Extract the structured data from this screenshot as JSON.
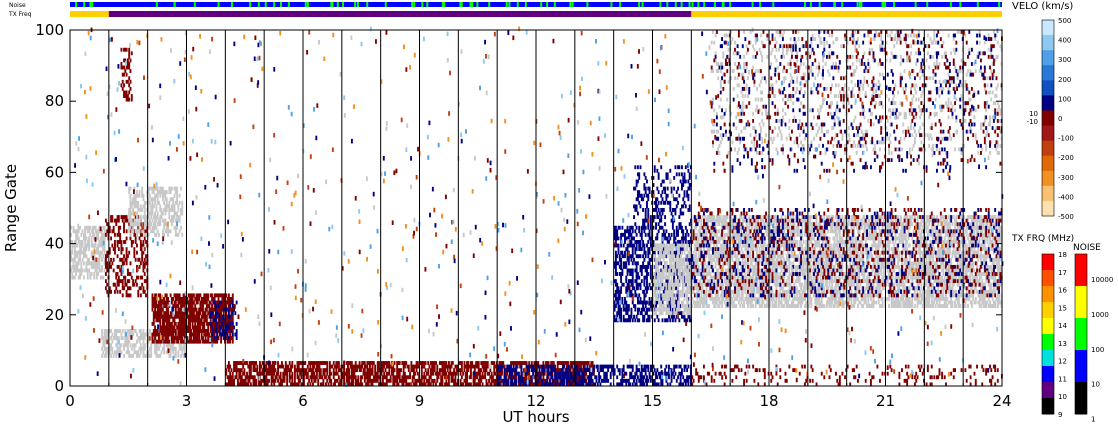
{
  "header": {
    "noise_label": "Noise",
    "txfreq_label": "TX Freq"
  },
  "colorbars": {
    "velo": {
      "title": "VELO (km/s)",
      "ticks": [
        "500",
        "400",
        "300",
        "200",
        "100",
        "0",
        "-100",
        "-200",
        "-300",
        "-400",
        "-500"
      ],
      "small_labels": [
        "10",
        "-10"
      ],
      "colors": [
        "#c8e8ff",
        "#8cc8f0",
        "#50a0e8",
        "#2878d8",
        "#1050c0",
        "#000080",
        "#800000",
        "#a01818",
        "#c04010",
        "#e06808",
        "#f09020",
        "#f8c070",
        "#fde0b0"
      ]
    },
    "txfrq": {
      "title": "TX FRQ (MHz)",
      "ticks": [
        "18",
        "17",
        "16",
        "15",
        "14",
        "13",
        "12",
        "11",
        "10",
        "9"
      ],
      "colors": [
        "#ff0000",
        "#ff5000",
        "#ff9000",
        "#ffd000",
        "#ffff00",
        "#00ff00",
        "#00e0e0",
        "#0000ff",
        "#600080",
        "#000000"
      ]
    },
    "noise": {
      "title": "NOISE",
      "ticks": [
        "10000",
        "1000",
        "100",
        "10",
        "1"
      ],
      "colors": [
        "#ff0000",
        "#ffff00",
        "#00ff00",
        "#0000ff",
        "#000000"
      ]
    }
  },
  "chart_data": {
    "type": "heatmap",
    "title": "",
    "xlabel": "UT hours",
    "ylabel": "Range Gate",
    "xlim": [
      0,
      24
    ],
    "ylim": [
      0,
      100
    ],
    "xticks": [
      "0",
      "3",
      "6",
      "9",
      "12",
      "15",
      "18",
      "21",
      "24"
    ],
    "yticks": [
      "0",
      "20",
      "40",
      "60",
      "80",
      "100"
    ],
    "ground_scatter_color": "#c8c8c8",
    "velocity_colors": {
      "negative": "#800000",
      "positive": "#000080"
    },
    "vertical_lines_hours": [
      1,
      2,
      3,
      4,
      5,
      6,
      7,
      8,
      9,
      10,
      11,
      12,
      13,
      14,
      15,
      16,
      17,
      18,
      19,
      20,
      21,
      22,
      23
    ],
    "tx_freq_segments": [
      {
        "from": 0,
        "to": 1,
        "color": "#ffd000"
      },
      {
        "from": 1,
        "to": 16,
        "color": "#600080"
      },
      {
        "from": 16,
        "to": 24,
        "color": "#ffd000"
      }
    ],
    "regions": [
      {
        "kind": "ground",
        "x": [
          0.0,
          0.9
        ],
        "y": [
          30,
          45
        ],
        "density": 0.6
      },
      {
        "kind": "neg",
        "x": [
          0.9,
          2.0
        ],
        "y": [
          25,
          48
        ],
        "density": 0.35
      },
      {
        "kind": "ground",
        "x": [
          1.5,
          2.9
        ],
        "y": [
          42,
          56
        ],
        "density": 0.5
      },
      {
        "kind": "neg",
        "x": [
          1.3,
          1.6
        ],
        "y": [
          80,
          95
        ],
        "density": 0.4
      },
      {
        "kind": "ground",
        "x": [
          0.8,
          3.0
        ],
        "y": [
          8,
          16
        ],
        "density": 0.6
      },
      {
        "kind": "neg",
        "x": [
          2.1,
          4.2
        ],
        "y": [
          12,
          26
        ],
        "density": 0.8
      },
      {
        "kind": "pos",
        "x": [
          3.6,
          4.3
        ],
        "y": [
          13,
          24
        ],
        "density": 0.3
      },
      {
        "kind": "neg",
        "x": [
          4.0,
          13.5
        ],
        "y": [
          0,
          7
        ],
        "density": 0.65
      },
      {
        "kind": "pos",
        "x": [
          11.0,
          16.0
        ],
        "y": [
          0,
          6
        ],
        "density": 0.5
      },
      {
        "kind": "pos",
        "x": [
          14.0,
          16.0
        ],
        "y": [
          18,
          45
        ],
        "density": 0.45
      },
      {
        "kind": "pos",
        "x": [
          14.5,
          16.0
        ],
        "y": [
          45,
          62
        ],
        "density": 0.25
      },
      {
        "kind": "ground",
        "x": [
          15.0,
          16.0
        ],
        "y": [
          20,
          40
        ],
        "density": 0.6
      },
      {
        "kind": "ground",
        "x": [
          16.0,
          24.0
        ],
        "y": [
          22,
          48
        ],
        "density": 0.65
      },
      {
        "kind": "neg",
        "x": [
          16.0,
          24.0
        ],
        "y": [
          25,
          50
        ],
        "density": 0.12
      },
      {
        "kind": "pos",
        "x": [
          16.0,
          24.0
        ],
        "y": [
          25,
          50
        ],
        "density": 0.08
      },
      {
        "kind": "neg",
        "x": [
          16.0,
          24.0
        ],
        "y": [
          0,
          6
        ],
        "density": 0.15
      },
      {
        "kind": "ground",
        "x": [
          16.5,
          24.0
        ],
        "y": [
          65,
          100
        ],
        "density": 0.12
      },
      {
        "kind": "pos",
        "x": [
          16.5,
          24.0
        ],
        "y": [
          60,
          100
        ],
        "density": 0.04
      },
      {
        "kind": "neg",
        "x": [
          16.5,
          24.0
        ],
        "y": [
          60,
          100
        ],
        "density": 0.04
      }
    ]
  }
}
